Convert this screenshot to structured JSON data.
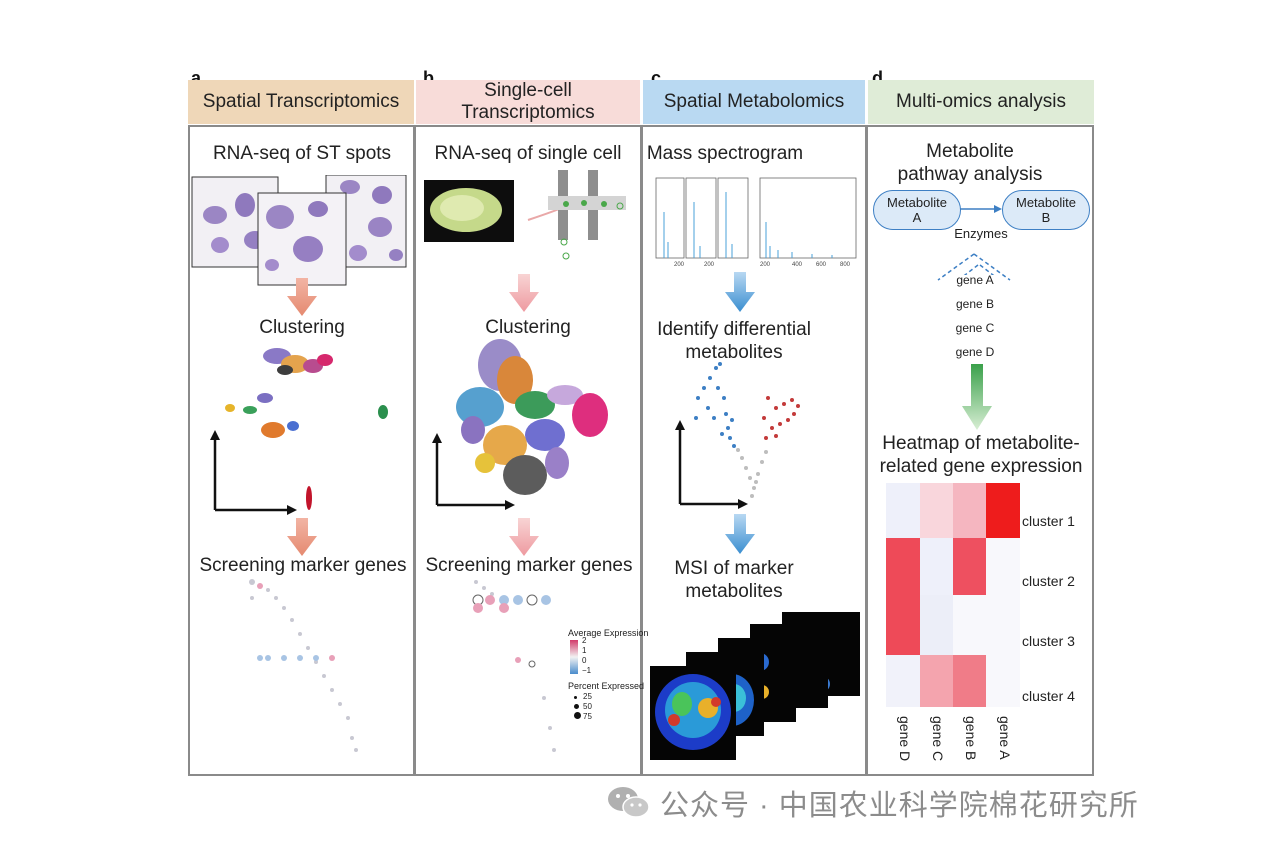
{
  "panels": {
    "a": {
      "letter": "a",
      "title": "Spatial Transcriptomics",
      "color": "#efd7b8",
      "step1": "RNA-seq of ST spots",
      "step2": "Clustering",
      "step3": "Screening marker genes"
    },
    "b": {
      "letter": "b",
      "title": "Single-cell Transcriptomics",
      "color": "#f8dcd9",
      "step1": "RNA-seq of single cell",
      "step2": "Clustering",
      "step3": "Screening marker genes",
      "legend_avg": "Average Expression",
      "legend_pct": "Percent Expressed",
      "legend_avg_ticks": [
        "2",
        "1",
        "0",
        "−1"
      ],
      "legend_pct_ticks": [
        "25",
        "50",
        "75"
      ]
    },
    "c": {
      "letter": "c",
      "title": "Spatial Metabolomics",
      "color": "#b9d9f2",
      "step1": "Mass spectrogram",
      "step2": "Identify differential metabolites",
      "step3": "MSI of marker metabolites",
      "ms_ticks": [
        "200",
        "400",
        "600",
        "800"
      ]
    },
    "d": {
      "letter": "d",
      "title": "Multi-omics analysis",
      "color": "#dfecd7",
      "step1": "Metabolite pathway analysis",
      "node_a": "Metabolite A",
      "node_b": "Metabolite B",
      "edge_label": "Enzymes",
      "genes": [
        "gene A",
        "gene B",
        "gene C",
        "gene D"
      ],
      "step2": "Heatmap of metabolite-related gene expression",
      "heatmap_rows": [
        "cluster 1",
        "cluster 2",
        "cluster 3",
        "cluster 4"
      ],
      "heatmap_cols": [
        "gene D",
        "gene C",
        "gene B",
        "gene A"
      ]
    }
  },
  "watermark": "公众号 · 中国农业科学院棉花研究所"
}
